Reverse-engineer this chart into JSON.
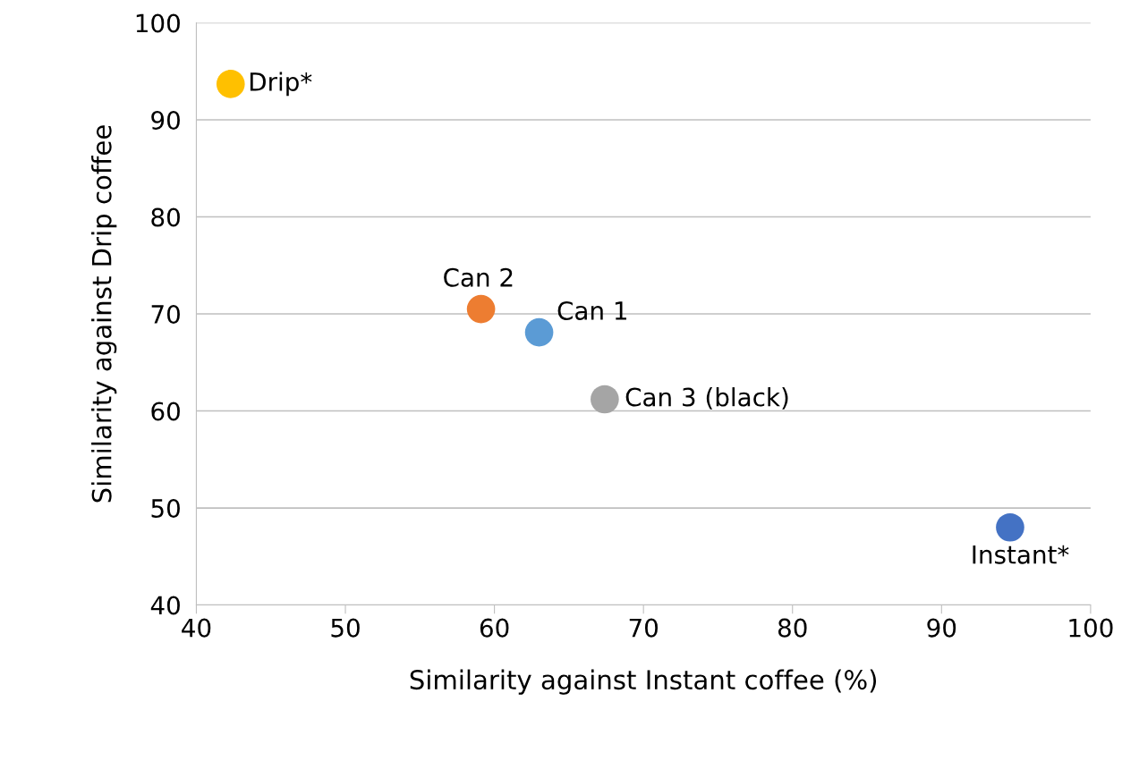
{
  "chart_data": {
    "type": "scatter",
    "xlabel": "Similarity against Instant coffee (%)",
    "ylabel": "Similarity against Drip coffee",
    "series": [
      {
        "name": "Drip*",
        "color": "#ffc000",
        "x": [
          42.3
        ],
        "values": [
          93.7
        ]
      },
      {
        "name": "Can 2",
        "color": "#ed7d31",
        "x": [
          59.1
        ],
        "values": [
          70.5
        ]
      },
      {
        "name": "Can 1",
        "color": "#5b9bd5",
        "x": [
          63.0
        ],
        "values": [
          68.1
        ]
      },
      {
        "name": "Can 3 (black)",
        "color": "#a5a5a5",
        "x": [
          67.4
        ],
        "values": [
          61.2
        ]
      },
      {
        "name": "Instant*",
        "color": "#4472c4",
        "x": [
          94.6
        ],
        "values": [
          48.0
        ]
      }
    ],
    "xlim": [
      40,
      100
    ],
    "xticks": [
      40,
      50,
      60,
      70,
      80,
      90,
      100
    ],
    "ylim": [
      40,
      100
    ],
    "yticks": [
      40,
      50,
      60,
      70,
      80,
      90,
      100
    ],
    "grid": "y",
    "legend": false,
    "marker": "circle"
  }
}
